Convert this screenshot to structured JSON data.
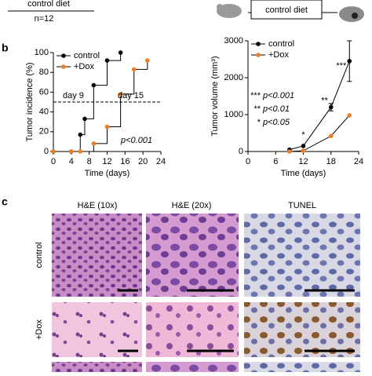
{
  "header": {
    "left_label": "control diet",
    "count": "n=12",
    "right_label": "control diet"
  },
  "panel_labels": [
    "b",
    "c"
  ],
  "chart_data": [
    {
      "type": "line",
      "step": true,
      "xlabel": "Time (days)",
      "ylabel": "Tumor incidence (%)",
      "xlim": [
        0,
        24
      ],
      "xticks": [
        0,
        4,
        8,
        12,
        16,
        20,
        24
      ],
      "ylim": [
        0,
        100
      ],
      "yticks": [
        0,
        20,
        40,
        60,
        80,
        100
      ],
      "series": [
        {
          "name": "control",
          "color": "#000000",
          "x": [
            0,
            4,
            6,
            7,
            9,
            12,
            15
          ],
          "values": [
            0,
            0,
            17,
            33,
            67,
            92,
            100
          ]
        },
        {
          "name": "+Dox",
          "color": "#f07d1e",
          "x": [
            0,
            4,
            6,
            9,
            12,
            15,
            18,
            21
          ],
          "values": [
            0,
            0,
            0,
            8,
            25,
            58,
            83,
            92
          ]
        }
      ],
      "hline": 50,
      "annotations": [
        {
          "text": "day 9",
          "color": "#000000"
        },
        {
          "text": "day 15",
          "color": "#f07d1e"
        },
        {
          "text": "p<0.001",
          "color": "#000000"
        }
      ],
      "legend": "upper left"
    },
    {
      "type": "line",
      "xlabel": "Time (days)",
      "ylabel": "Tumor volume (mm³)",
      "xlim": [
        0,
        24
      ],
      "xticks": [
        0,
        6,
        12,
        18,
        24
      ],
      "ylim": [
        0,
        3000
      ],
      "yticks": [
        0,
        1000,
        2000,
        3000
      ],
      "series": [
        {
          "name": "control",
          "color": "#000000",
          "x": [
            9,
            12,
            18,
            22
          ],
          "values": [
            50,
            150,
            1200,
            2450
          ],
          "errors": [
            null,
            null,
            100,
            550
          ]
        },
        {
          "name": "+Dox",
          "color": "#f07d1e",
          "x": [
            9,
            12,
            18,
            22
          ],
          "values": [
            0,
            20,
            420,
            980
          ]
        }
      ],
      "annotations": [
        {
          "text": "*",
          "x": 12
        },
        {
          "text": "**",
          "x": 18
        },
        {
          "text": "***",
          "x": 22
        }
      ],
      "significance": [
        {
          "stars": "***",
          "text": "p<0.001"
        },
        {
          "stars": "**",
          "text": "p<0.01"
        },
        {
          "stars": "*",
          "text": "p<0.05"
        }
      ],
      "legend": "upper left"
    }
  ],
  "histology": {
    "columns": [
      "H&E (10x)",
      "H&E (20x)",
      "TUNEL"
    ],
    "rows": [
      "control",
      "+Dox"
    ]
  }
}
